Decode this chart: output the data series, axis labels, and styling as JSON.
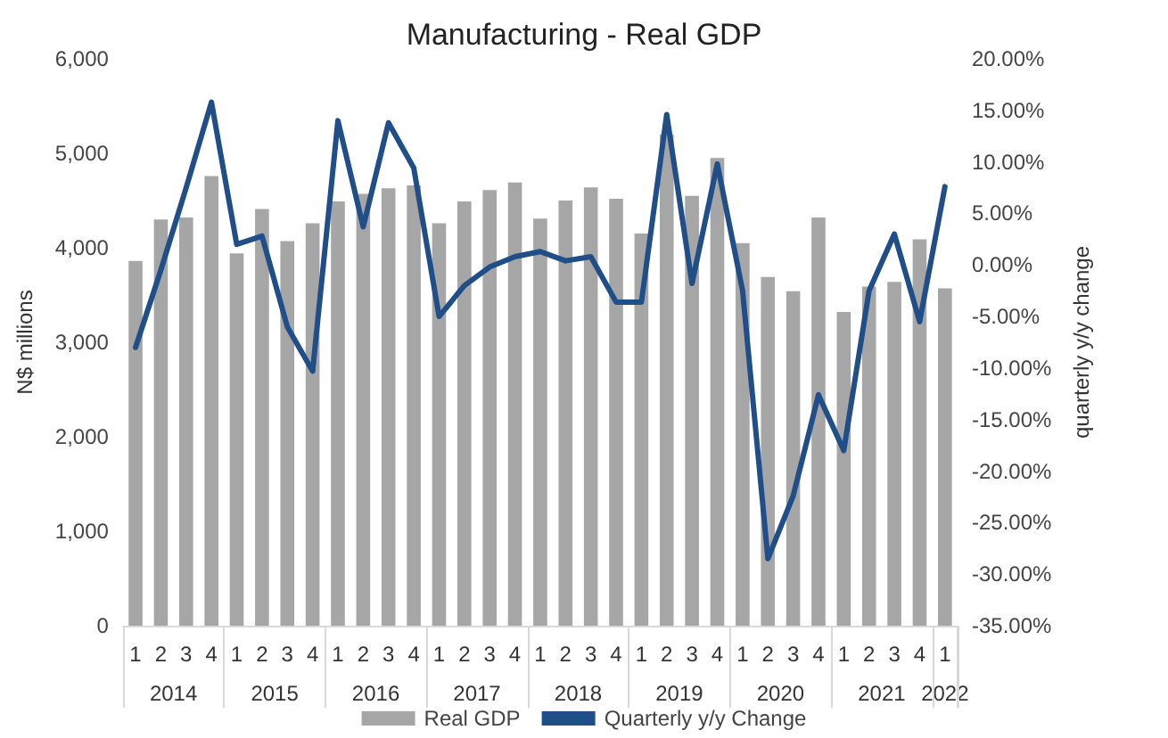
{
  "chart_data": {
    "type": "bar",
    "title": "Manufacturing - Real GDP",
    "ylabel": "N$ millions",
    "y2label": "quarterly y/y change",
    "categories": [
      "1",
      "2",
      "3",
      "4",
      "1",
      "2",
      "3",
      "4",
      "1",
      "2",
      "3",
      "4",
      "1",
      "2",
      "3",
      "4",
      "1",
      "2",
      "3",
      "4",
      "1",
      "2",
      "3",
      "4",
      "1",
      "2",
      "3",
      "4",
      "1",
      "2",
      "3",
      "4",
      "1"
    ],
    "annotations": [
      "2014",
      "2015",
      "2016",
      "2017",
      "2018",
      "2019",
      "2020",
      "2021",
      "2022"
    ],
    "series": [
      {
        "name": "Real GDP",
        "color": "#a6a6a6",
        "values": [
          3860,
          4300,
          4320,
          4760,
          3940,
          4410,
          4070,
          4260,
          4490,
          4570,
          4630,
          4660,
          4260,
          4490,
          4610,
          4690,
          4310,
          4500,
          4640,
          4520,
          4150,
          5200,
          4550,
          4950,
          4050,
          3690,
          3540,
          4320,
          3320,
          3590,
          3640,
          4090,
          3570
        ]
      },
      {
        "name": "Quarterly y/y Change",
        "type": "line",
        "axis": "y2",
        "color": "#1f4e89",
        "marker": "none",
        "line_style": "solid",
        "values": [
          -8.0,
          -0.5,
          7.5,
          15.8,
          2.0,
          2.8,
          -6.0,
          -10.3,
          14.0,
          3.7,
          13.8,
          9.4,
          -5.0,
          -2.0,
          -0.2,
          0.8,
          1.3,
          0.4,
          0.8,
          -3.6,
          -3.6,
          14.6,
          -1.8,
          9.8,
          -2.5,
          -28.5,
          -22.4,
          -12.6,
          -18.0,
          -2.5,
          3.0,
          -5.5,
          7.6
        ]
      }
    ],
    "ylim": [
      0,
      6000
    ],
    "yticks": [
      0,
      {
        "value": 1000,
        "label": "1,000"
      },
      {
        "value": 2000,
        "label": "2,000"
      },
      {
        "value": 3000,
        "label": "3,000"
      },
      {
        "value": 4000,
        "label": "4,000"
      },
      {
        "value": 5000,
        "label": "5,000"
      },
      {
        "value": 6000,
        "label": "6,000"
      }
    ],
    "y2lim": [
      -35,
      20
    ],
    "y2ticks": [
      {
        "value": -35,
        "label": "-35.00%"
      },
      {
        "value": -30,
        "label": "-30.00%"
      },
      {
        "value": -25,
        "label": "-25.00%"
      },
      {
        "value": -20,
        "label": "-20.00%"
      },
      {
        "value": -15,
        "label": "-15.00%"
      },
      {
        "value": -10,
        "label": "-10.00%"
      },
      {
        "value": -5,
        "label": "-5.00%"
      },
      {
        "value": 0,
        "label": "0.00%"
      },
      {
        "value": 5,
        "label": "5.00%"
      },
      {
        "value": 10,
        "label": "10.00%"
      },
      {
        "value": 15,
        "label": "15.00%"
      },
      {
        "value": 20,
        "label": "20.00%"
      }
    ],
    "grid": false,
    "legend": "bottom"
  }
}
